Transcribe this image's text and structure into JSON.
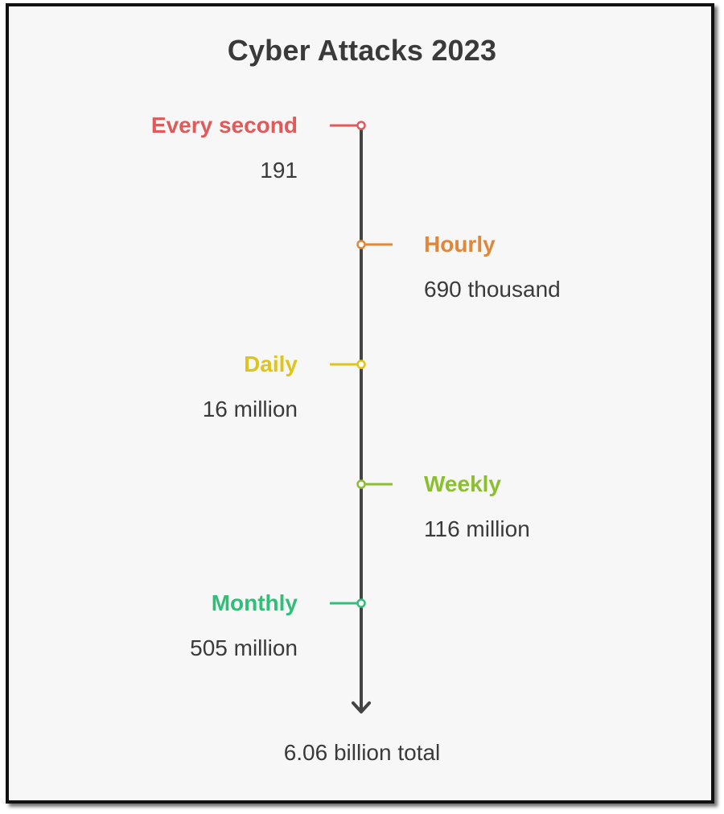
{
  "title": "Cyber Attacks 2023",
  "colors": {
    "axis": "#444444",
    "text": "#3a3a3a"
  },
  "milestones": [
    {
      "label": "Every second",
      "value": "191",
      "side": "left",
      "color": "#e05a5a"
    },
    {
      "label": "Hourly",
      "value": "690 thousand",
      "side": "right",
      "color": "#e0873a"
    },
    {
      "label": "Daily",
      "value": "16 million",
      "side": "left",
      "color": "#e0c41a"
    },
    {
      "label": "Weekly",
      "value": "116 million",
      "side": "right",
      "color": "#8cbf2e"
    },
    {
      "label": "Monthly",
      "value": "505 million",
      "side": "left",
      "color": "#2fbf78"
    }
  ],
  "total": "6.06 billion total"
}
